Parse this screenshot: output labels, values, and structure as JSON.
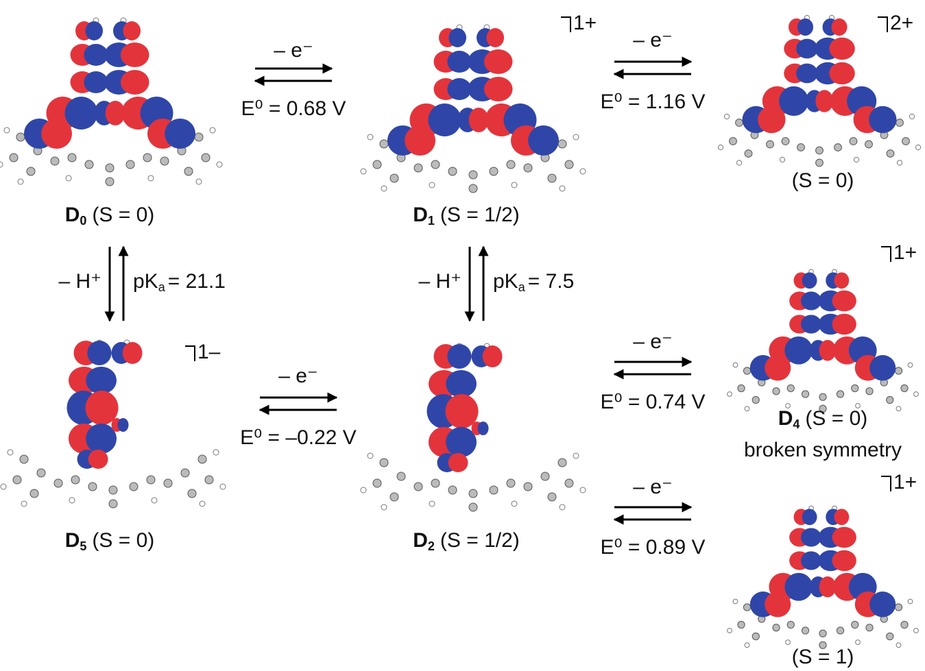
{
  "species": [
    {
      "symbol": "D",
      "subscript": "0",
      "state": "(S = 0)"
    },
    {
      "symbol": "D",
      "subscript": "1",
      "state": "(S = 1/2)",
      "charge": "1+"
    },
    {
      "state": "(S = 0)",
      "charge": "2+"
    },
    {
      "symbol": "D",
      "subscript": "5",
      "state": "(S = 0)",
      "charge": "1–"
    },
    {
      "symbol": "D",
      "subscript": "2",
      "state": "(S = 1/2)"
    },
    {
      "symbol": "D",
      "subscript": "4",
      "state": "(S = 0)",
      "note": "broken symmetry",
      "charge": "1+"
    },
    {
      "state": "(S = 1)",
      "charge": "1+"
    }
  ],
  "oxidations": [
    {
      "step": "– e⁻",
      "potential": "E⁰ = 0.68 V"
    },
    {
      "step": "– e⁻",
      "potential": "E⁰ = 1.16 V"
    },
    {
      "step": "– e⁻",
      "potential": "E⁰ = –0.22 V"
    },
    {
      "step": "– e⁻",
      "potential": "E⁰ = 0.74 V"
    },
    {
      "step": "– e⁻",
      "potential": "E⁰ = 0.89 V"
    }
  ],
  "deprotonations": [
    {
      "step": "– H⁺",
      "pk": "pK",
      "pk_sub": "a",
      "value": "= 21.1"
    },
    {
      "step": "– H⁺",
      "pk": "pK",
      "pk_sub": "a",
      "value": "= 7.5"
    }
  ]
}
